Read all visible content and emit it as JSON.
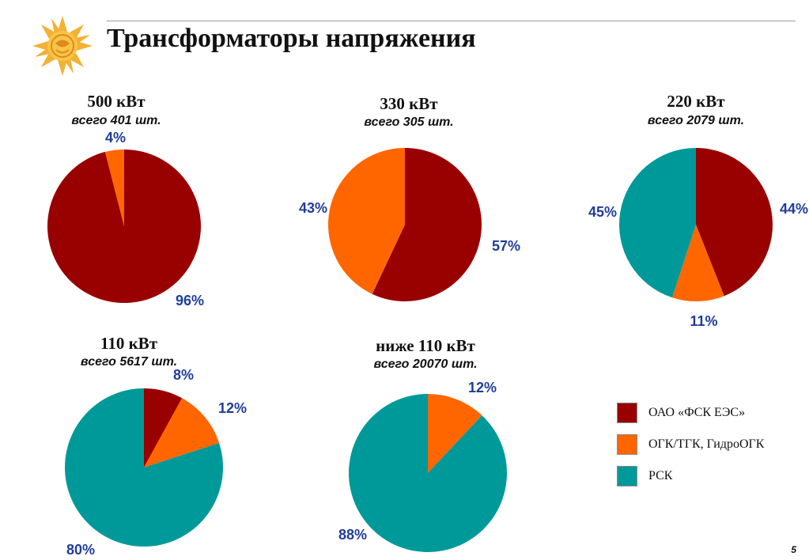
{
  "title": "Трансформаторы напряжения",
  "slide_number": "5",
  "colors": {
    "fsk": "#990000",
    "ogk": "#ff6600",
    "rsk": "#009999",
    "label": "#1f3d99"
  },
  "legend": [
    {
      "label": "ОАО «ФСК ЕЭС»",
      "color": "#990000"
    },
    {
      "label": "ОГК/ТГК, ГидроОГК",
      "color": "#ff6600"
    },
    {
      "label": "РСК",
      "color": "#009999"
    }
  ],
  "chart_data": [
    {
      "type": "pie",
      "title": "500 кВт",
      "subtitle": "всего 401 шт.",
      "slices": [
        {
          "category": "ОАО «ФСК ЕЭС»",
          "value": 96,
          "label": "96%",
          "color": "#990000"
        },
        {
          "category": "ОГК/ТГК, ГидроОГК",
          "value": 4,
          "label": "4%",
          "color": "#ff6600"
        }
      ]
    },
    {
      "type": "pie",
      "title": "330 кВт",
      "subtitle": "всего 305 шт.",
      "slices": [
        {
          "category": "ОАО «ФСК ЕЭС»",
          "value": 57,
          "label": "57%",
          "color": "#990000"
        },
        {
          "category": "ОГК/ТГК, ГидроОГК",
          "value": 43,
          "label": "43%",
          "color": "#ff6600"
        }
      ]
    },
    {
      "type": "pie",
      "title": "220 кВт",
      "subtitle": "всего 2079 шт.",
      "slices": [
        {
          "category": "ОАО «ФСК ЕЭС»",
          "value": 44,
          "label": "44%",
          "color": "#990000"
        },
        {
          "category": "ОГК/ТГК, ГидроОГК",
          "value": 11,
          "label": "11%",
          "color": "#ff6600"
        },
        {
          "category": "РСК",
          "value": 45,
          "label": "45%",
          "color": "#009999"
        }
      ]
    },
    {
      "type": "pie",
      "title": "110 кВт",
      "subtitle": "всего 5617 шт.",
      "slices": [
        {
          "category": "ОАО «ФСК ЕЭС»",
          "value": 8,
          "label": "8%",
          "color": "#990000"
        },
        {
          "category": "ОГК/ТГК, ГидроОГК",
          "value": 12,
          "label": "12%",
          "color": "#ff6600"
        },
        {
          "category": "РСК",
          "value": 80,
          "label": "80%",
          "color": "#009999"
        }
      ]
    },
    {
      "type": "pie",
      "title": "ниже 110 кВт",
      "subtitle": "всего 20070 шт.",
      "slices": [
        {
          "category": "ОГК/ТГК, ГидроОГК",
          "value": 12,
          "label": "12%",
          "color": "#ff6600"
        },
        {
          "category": "РСК",
          "value": 88,
          "label": "88%",
          "color": "#009999"
        }
      ]
    }
  ]
}
